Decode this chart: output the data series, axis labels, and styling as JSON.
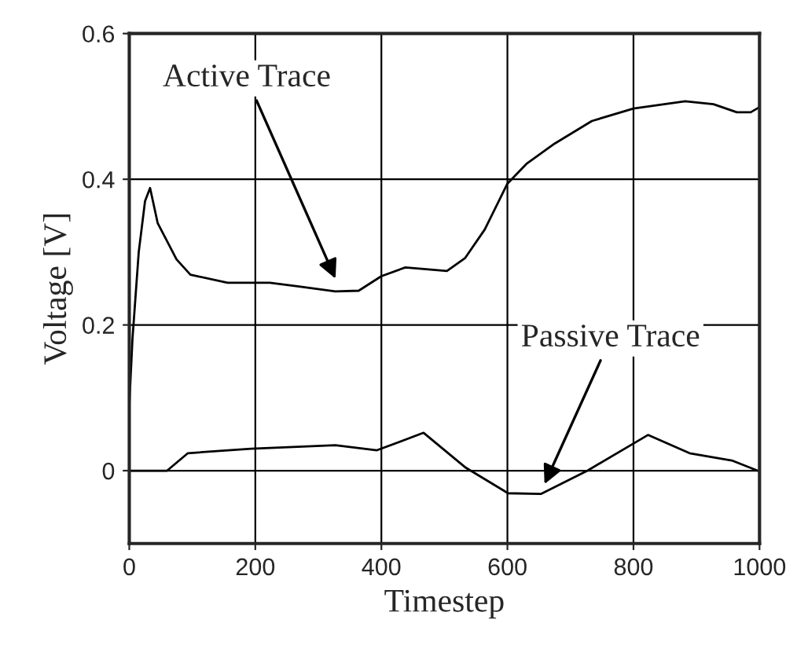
{
  "chart_data": {
    "type": "line",
    "xlabel": "Timestep",
    "ylabel": "Voltage [V]",
    "series": [
      {
        "color": "#000000",
        "x": [
          0,
          5,
          15,
          25,
          33,
          45,
          75,
          97,
          156,
          223,
          267,
          327,
          364,
          400,
          438,
          504,
          533,
          564,
          600,
          630,
          675,
          734,
          800,
          882,
          927,
          964,
          986,
          1000
        ],
        "values": [
          0.09,
          0.18,
          0.3,
          0.37,
          0.388,
          0.34,
          0.29,
          0.269,
          0.258,
          0.258,
          0.253,
          0.246,
          0.247,
          0.267,
          0.279,
          0.274,
          0.292,
          0.331,
          0.394,
          0.421,
          0.449,
          0.48,
          0.497,
          0.507,
          0.503,
          0.492,
          0.492,
          0.499
        ]
      },
      {
        "color": "#000000",
        "x": [
          0,
          60,
          93,
          193,
          327,
          393,
          467,
          534,
          601,
          653,
          727,
          823,
          889,
          956,
          997
        ],
        "values": [
          0,
          0,
          0.024,
          0.03,
          0.035,
          0.028,
          0.052,
          0.004,
          -0.031,
          -0.032,
          0,
          0.049,
          0.024,
          0.014,
          0
        ]
      }
    ],
    "annotations": [
      {
        "text": "Active Trace",
        "x": 330,
        "y": 0.258
      },
      {
        "text": "Passive Trace",
        "x": 656,
        "y": -0.024
      }
    ],
    "xlim": [
      0,
      1000
    ],
    "ylim": [
      -0.1,
      0.6
    ],
    "xticks": [
      0,
      200,
      400,
      600,
      800,
      {
        "value": 1000,
        "label": "1000"
      }
    ],
    "yticks": [
      0,
      0.2,
      0.4,
      0.6
    ],
    "grid": true,
    "marker": "none",
    "line_style": "solid"
  }
}
